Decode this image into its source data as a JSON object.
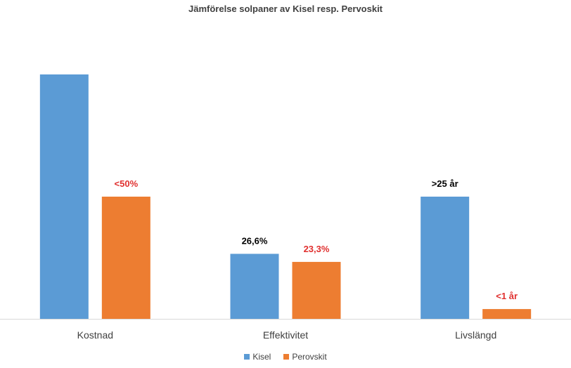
{
  "chart_data": {
    "type": "bar",
    "title": "Jämförelse solpaner av Kisel resp. Pervoskit",
    "categories": [
      "Kostnad",
      "Effektivitet",
      "Livslängd"
    ],
    "series": [
      {
        "name": "Kisel",
        "color": "#5b9bd5",
        "values": [
          100,
          26.6,
          50
        ],
        "labels": [
          "",
          "26,6%",
          ">25 år"
        ],
        "label_color": "#000000"
      },
      {
        "name": "Perovskit",
        "color": "#ed7d31",
        "values": [
          50,
          23.3,
          4
        ],
        "labels": [
          "<50%",
          "23,3%",
          "<1 år"
        ],
        "label_color": "#e0302f"
      }
    ],
    "ylim": [
      0,
      100
    ],
    "grid": false,
    "legend_position": "bottom"
  }
}
